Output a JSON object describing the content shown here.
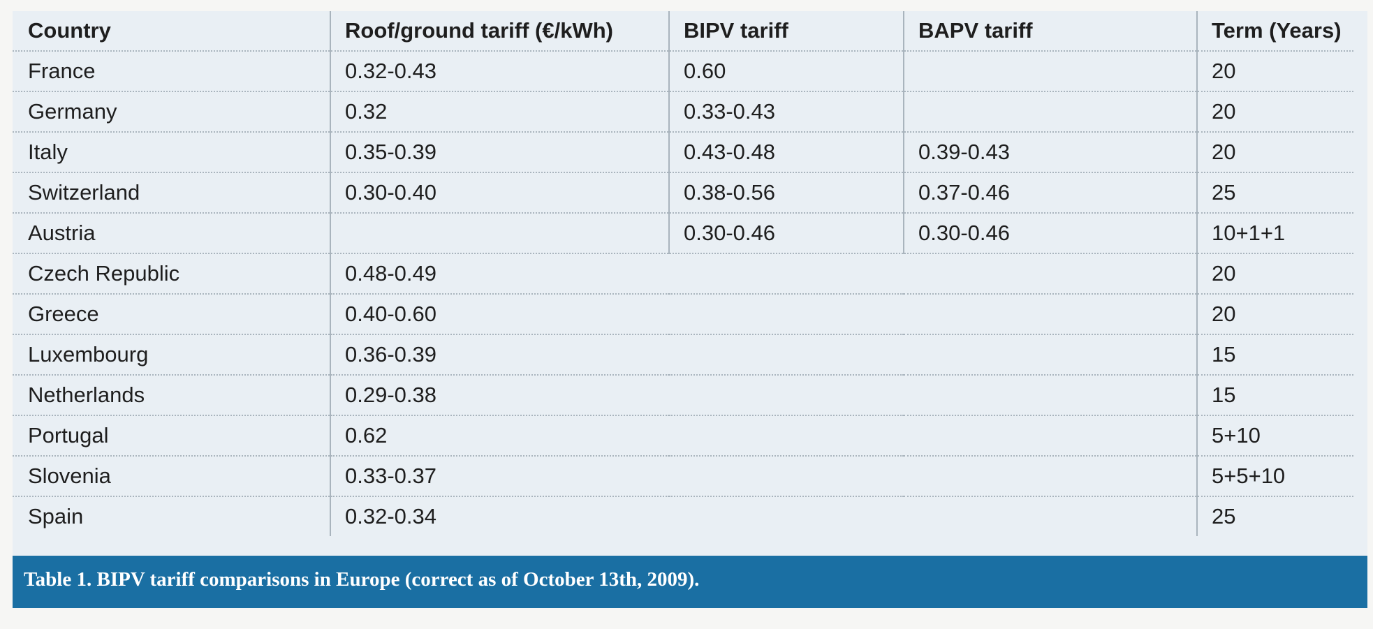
{
  "table": {
    "headers": [
      "Country",
      "Roof/ground tariff (€/kWh)",
      "BIPV tariff",
      "BAPV tariff",
      "Term (Years)"
    ],
    "rows": [
      {
        "country": "France",
        "roof_ground": "0.32-0.43",
        "bipv": "0.60",
        "bapv": "",
        "term": "20"
      },
      {
        "country": "Germany",
        "roof_ground": "0.32",
        "bipv": "0.33-0.43",
        "bapv": "",
        "term": "20"
      },
      {
        "country": "Italy",
        "roof_ground": "0.35-0.39",
        "bipv": "0.43-0.48",
        "bapv": "0.39-0.43",
        "term": "20"
      },
      {
        "country": "Switzerland",
        "roof_ground": "0.30-0.40",
        "bipv": "0.38-0.56",
        "bapv": "0.37-0.46",
        "term": "25"
      },
      {
        "country": "Austria",
        "roof_ground": "",
        "bipv": "0.30-0.46",
        "bapv": "0.30-0.46",
        "term": "10+1+1"
      },
      {
        "country": "Czech Republic",
        "roof_ground": "0.48-0.49",
        "bipv": "",
        "bapv": "",
        "term": "20"
      },
      {
        "country": "Greece",
        "roof_ground": "0.40-0.60",
        "bipv": "",
        "bapv": "",
        "term": "20"
      },
      {
        "country": "Luxembourg",
        "roof_ground": "0.36-0.39",
        "bipv": "",
        "bapv": "",
        "term": "15"
      },
      {
        "country": "Netherlands",
        "roof_ground": "0.29-0.38",
        "bipv": "",
        "bapv": "",
        "term": "15"
      },
      {
        "country": "Portugal",
        "roof_ground": "0.62",
        "bipv": "",
        "bapv": "",
        "term": "5+10"
      },
      {
        "country": "Slovenia",
        "roof_ground": "0.33-0.37",
        "bipv": "",
        "bapv": "",
        "term": "5+5+10"
      },
      {
        "country": "Spain",
        "roof_ground": "0.32-0.34",
        "bipv": "",
        "bapv": "",
        "term": "25"
      }
    ]
  },
  "caption": "Table 1. BIPV tariff comparisons in Europe (correct as of October 13th, 2009).",
  "colors": {
    "panel_bg": "#e9eff4",
    "caption_bar": "#1a6fa3",
    "caption_text": "#ffffff",
    "rule": "#a9b4bd"
  }
}
